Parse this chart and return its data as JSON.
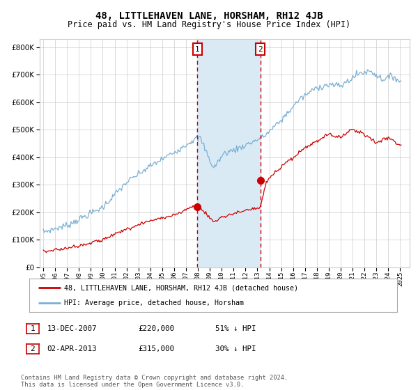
{
  "title": "48, LITTLEHAVEN LANE, HORSHAM, RH12 4JB",
  "subtitle": "Price paid vs. HM Land Registry's House Price Index (HPI)",
  "hpi_color": "#7ab0d4",
  "price_color": "#cc0000",
  "sale1_date_num": 2007.95,
  "sale1_price": 220000,
  "sale2_date_num": 2013.25,
  "sale2_price": 315000,
  "shaded_region_color": "#daeaf5",
  "vline_color": "#cc0000",
  "bg_color": "#ffffff",
  "grid_color": "#cccccc",
  "ylim": [
    0,
    830000
  ],
  "xlim_start": 1994.7,
  "xlim_end": 2025.8,
  "legend_property_label": "48, LITTLEHAVEN LANE, HORSHAM, RH12 4JB (detached house)",
  "legend_hpi_label": "HPI: Average price, detached house, Horsham",
  "table_label1": "1",
  "table_date1": "13-DEC-2007",
  "table_price1": "£220,000",
  "table_hpi1": "51% ↓ HPI",
  "table_label2": "2",
  "table_date2": "02-APR-2013",
  "table_price2": "£315,000",
  "table_hpi2": "30% ↓ HPI",
  "footnote": "Contains HM Land Registry data © Crown copyright and database right 2024.\nThis data is licensed under the Open Government Licence v3.0."
}
